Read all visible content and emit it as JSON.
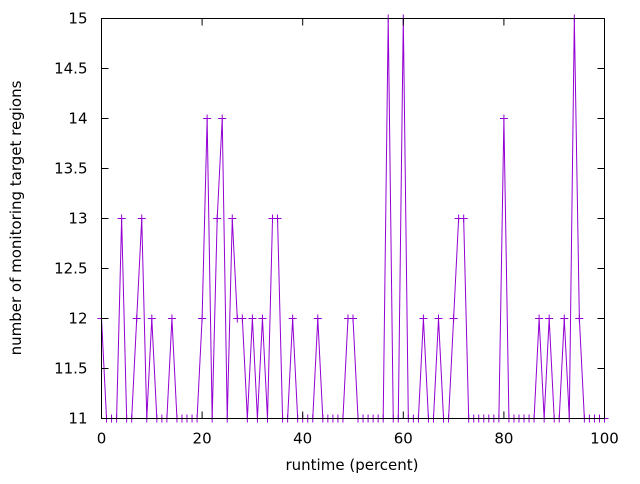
{
  "chart_data": {
    "type": "line",
    "title": "",
    "xlabel": "runtime (percent)",
    "ylabel": "number of monitoring target regions",
    "xlim": [
      0,
      100
    ],
    "ylim": [
      11,
      15
    ],
    "xticks": [
      "0",
      "20",
      "40",
      "60",
      "80",
      "100"
    ],
    "xtick_values": [
      0,
      20,
      40,
      60,
      80,
      100
    ],
    "yticks": [
      "11",
      "11.5",
      "12",
      "12.5",
      "13",
      "13.5",
      "14",
      "14.5",
      "15"
    ],
    "ytick_values": [
      11,
      11.5,
      12,
      12.5,
      13,
      13.5,
      14,
      14.5,
      15
    ],
    "grid": false,
    "legend": "none",
    "series": [
      {
        "name": "regions",
        "color": "#9400d3",
        "marker": "plus",
        "x": [
          0,
          1,
          2,
          3,
          4,
          5,
          6,
          7,
          8,
          9,
          10,
          11,
          12,
          13,
          14,
          15,
          16,
          17,
          18,
          19,
          20,
          21,
          22,
          23,
          24,
          25,
          26,
          27,
          28,
          29,
          30,
          31,
          32,
          33,
          34,
          35,
          36,
          37,
          38,
          39,
          40,
          41,
          42,
          43,
          44,
          45,
          46,
          47,
          48,
          49,
          50,
          51,
          52,
          53,
          54,
          55,
          56,
          57,
          58,
          59,
          60,
          61,
          62,
          63,
          64,
          65,
          66,
          67,
          68,
          69,
          70,
          71,
          72,
          73,
          74,
          75,
          76,
          77,
          78,
          79,
          80,
          81,
          82,
          83,
          84,
          85,
          86,
          87,
          88,
          89,
          90,
          91,
          92,
          93,
          94,
          95,
          96,
          97,
          98,
          99,
          100
        ],
        "y": [
          12,
          11,
          11,
          11,
          13,
          11,
          11,
          12,
          13,
          11,
          12,
          11,
          11,
          11,
          12,
          11,
          11,
          11,
          11,
          11,
          12,
          14,
          11,
          13,
          14,
          11,
          13,
          12,
          12,
          11,
          12,
          11,
          12,
          11,
          13,
          13,
          11,
          11,
          12,
          11,
          11,
          11,
          11,
          12,
          11,
          11,
          11,
          11,
          11,
          12,
          12,
          11,
          11,
          11,
          11,
          11,
          11,
          15,
          11,
          11,
          15,
          11,
          11,
          11,
          12,
          11,
          11,
          12,
          11,
          11,
          12,
          13,
          13,
          11,
          11,
          11,
          11,
          11,
          11,
          11,
          14,
          11,
          11,
          11,
          11,
          11,
          11,
          12,
          11,
          12,
          11,
          11,
          12,
          11,
          15,
          12,
          11,
          11,
          11,
          11,
          11
        ]
      }
    ]
  }
}
